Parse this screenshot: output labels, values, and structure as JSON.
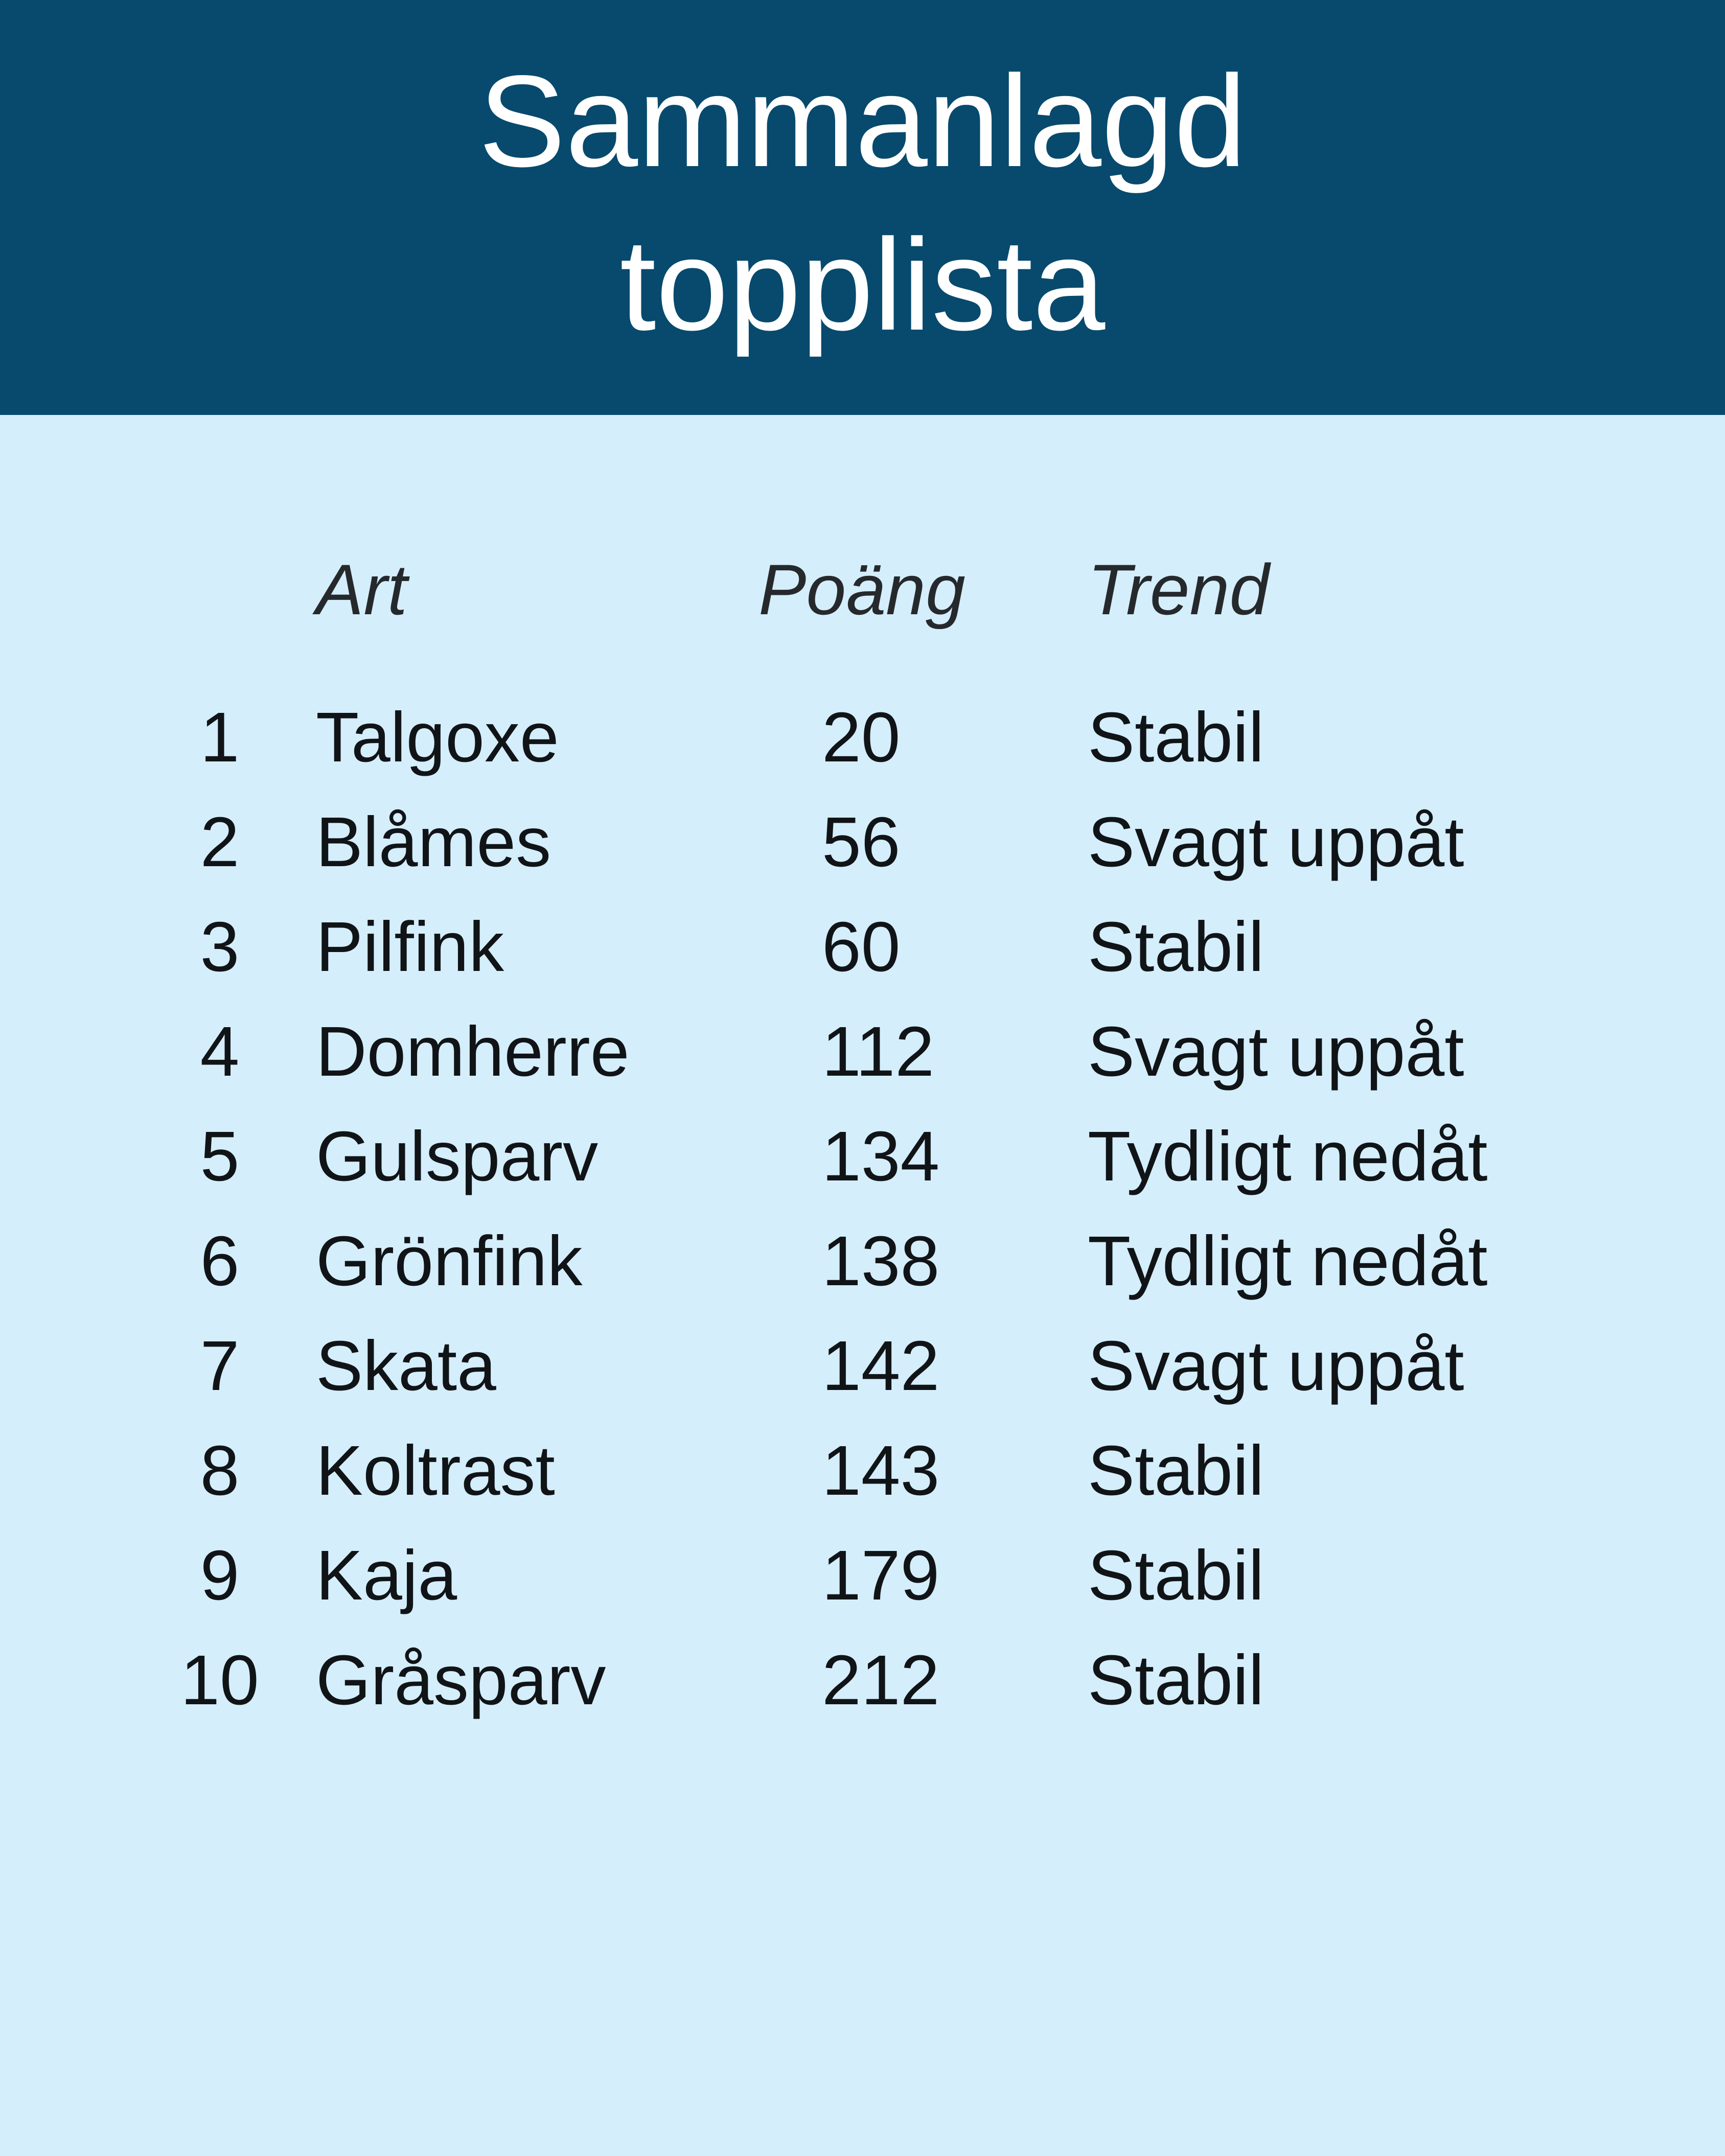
{
  "title": {
    "line1": "Sammanlagd",
    "line2": "topplista"
  },
  "colors": {
    "header_bg": "#074a6d",
    "body_bg": "#d4eefc",
    "title_text": "#ffffff",
    "body_text": "#111417",
    "column_header_text": "#26292c"
  },
  "chart_data": {
    "type": "table",
    "title": "Sammanlagd topplista",
    "column_headers": {
      "art": "Art",
      "poang": "Poäng",
      "trend": "Trend"
    },
    "rows": [
      {
        "rank": "1",
        "art": "Talgoxe",
        "poang": "20",
        "trend": "Stabil"
      },
      {
        "rank": "2",
        "art": "Blåmes",
        "poang": "56",
        "trend": "Svagt uppåt"
      },
      {
        "rank": "3",
        "art": "Pilfink",
        "poang": "60",
        "trend": "Stabil"
      },
      {
        "rank": "4",
        "art": "Domherre",
        "poang": "112",
        "trend": "Svagt uppåt"
      },
      {
        "rank": "5",
        "art": "Gulsparv",
        "poang": "134",
        "trend": "Tydligt nedåt"
      },
      {
        "rank": "6",
        "art": "Grönfink",
        "poang": "138",
        "trend": "Tydligt nedåt"
      },
      {
        "rank": "7",
        "art": "Skata",
        "poang": "142",
        "trend": "Svagt uppåt"
      },
      {
        "rank": "8",
        "art": "Koltrast",
        "poang": "143",
        "trend": "Stabil"
      },
      {
        "rank": "9",
        "art": "Kaja",
        "poang": "179",
        "trend": "Stabil"
      },
      {
        "rank": "10",
        "art": "Gråsparv",
        "poang": "212",
        "trend": "Stabil"
      }
    ]
  }
}
